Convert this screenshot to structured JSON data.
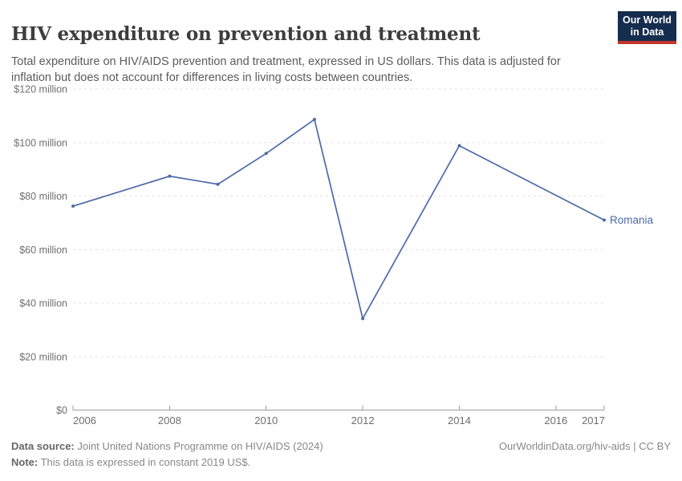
{
  "header": {
    "title": "HIV expenditure on prevention and treatment",
    "subtitle_line1": "Total expenditure on HIV/AIDS prevention and treatment, expressed in US dollars. This data is adjusted for",
    "subtitle_line2": "inflation but does not account for differences in living costs between countries.",
    "logo_line1": "Our World",
    "logo_line2": "in Data"
  },
  "chart_data": {
    "type": "line",
    "title": "HIV expenditure on prevention and treatment",
    "xlabel": "",
    "ylabel": "",
    "xlim": [
      2006,
      2017
    ],
    "ylim": [
      0,
      120
    ],
    "grid": "horizontal-dashed",
    "legend_position": "end-of-line-label",
    "unit": "US$ million",
    "series": [
      {
        "name": "Romania",
        "color": "#4c6aa9",
        "points": [
          {
            "x": 2006,
            "y": 76.2
          },
          {
            "x": 2008,
            "y": 87.4
          },
          {
            "x": 2009,
            "y": 84.4
          },
          {
            "x": 2010,
            "y": 95.9
          },
          {
            "x": 2011,
            "y": 108.6
          },
          {
            "x": 2012,
            "y": 34.2
          },
          {
            "x": 2014,
            "y": 98.8
          },
          {
            "x": 2017,
            "y": 71.0
          }
        ]
      }
    ],
    "x_ticks": [
      {
        "value": 2006,
        "label": "2006"
      },
      {
        "value": 2008,
        "label": "2008"
      },
      {
        "value": 2010,
        "label": "2010"
      },
      {
        "value": 2012,
        "label": "2012"
      },
      {
        "value": 2014,
        "label": "2014"
      },
      {
        "value": 2016,
        "label": "2016"
      },
      {
        "value": 2017,
        "label": "2017"
      }
    ],
    "y_ticks": [
      {
        "value": 0,
        "label": "$0"
      },
      {
        "value": 20,
        "label": "$20 million"
      },
      {
        "value": 40,
        "label": "$40 million"
      },
      {
        "value": 60,
        "label": "$60 million"
      },
      {
        "value": 80,
        "label": "$80 million"
      },
      {
        "value": 100,
        "label": "$100 million"
      },
      {
        "value": 120,
        "label": "$120 million"
      }
    ]
  },
  "footer": {
    "datasource_label": "Data source:",
    "datasource_text": " Joint United Nations Programme on HIV/AIDS (2024)",
    "note_label": "Note:",
    "note_text": " This data is expressed in constant 2019 US$.",
    "attribution": "OurWorldinData.org/hiv-aids | CC BY"
  },
  "colors": {
    "line": "#4c6aa9",
    "grid": "#e2e2e2",
    "axis": "#9e9e9e",
    "tick_label": "#6e6e6e",
    "logo_bg": "#152d4e",
    "logo_red": "#c0362b"
  }
}
